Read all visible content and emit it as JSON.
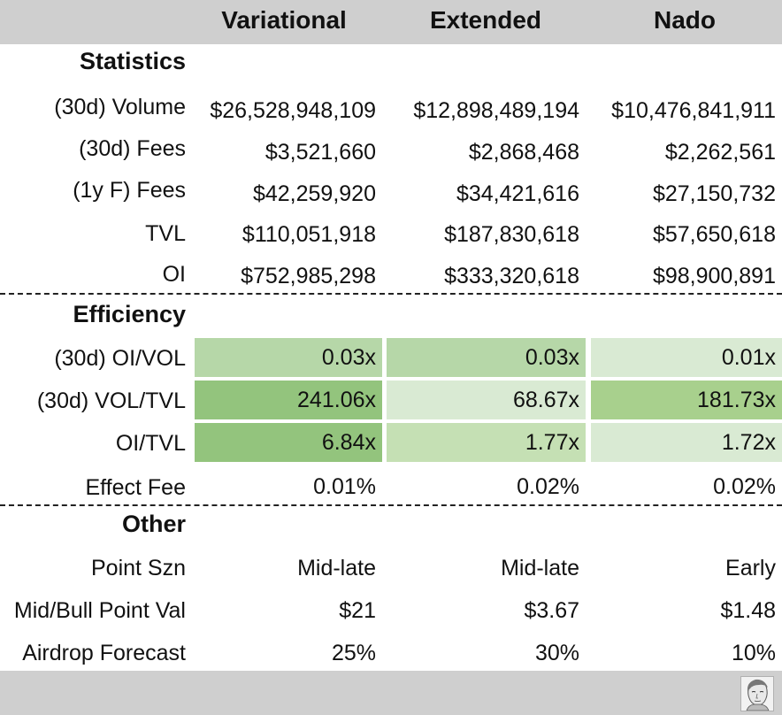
{
  "header": {
    "columns": [
      "Variational",
      "Extended",
      "Nado"
    ]
  },
  "statistics": {
    "title": "Statistics",
    "rows": [
      {
        "label": "(30d) Volume",
        "values": [
          "$26,528,948,109",
          "$12,898,489,194",
          "$10,476,841,911"
        ]
      },
      {
        "label": "(30d) Fees",
        "values": [
          "$3,521,660",
          "$2,868,468",
          "$2,262,561"
        ]
      },
      {
        "label": "(1y F) Fees",
        "values": [
          "$42,259,920",
          "$34,421,616",
          "$27,150,732"
        ]
      },
      {
        "label": "TVL",
        "values": [
          "$110,051,918",
          "$187,830,618",
          "$57,650,618"
        ]
      },
      {
        "label": "OI",
        "values": [
          "$752,985,298",
          "$333,320,618",
          "$98,900,891"
        ]
      }
    ]
  },
  "efficiency": {
    "title": "Efficiency",
    "rows": [
      {
        "label": "(30d) OI/VOL",
        "values": [
          "0.03x",
          "0.03x",
          "0.01x"
        ],
        "colors": [
          "#b6d7a8",
          "#b6d7a8",
          "#d9ead3"
        ]
      },
      {
        "label": "(30d) VOL/TVL",
        "values": [
          "241.06x",
          "68.67x",
          "181.73x"
        ],
        "colors": [
          "#93c47d",
          "#d9ead3",
          "#a8d08d"
        ]
      },
      {
        "label": "OI/TVL",
        "values": [
          "6.84x",
          "1.77x",
          "1.72x"
        ],
        "colors": [
          "#93c47d",
          "#c5e0b4",
          "#d9ead3"
        ]
      },
      {
        "label": "Effect Fee",
        "values": [
          "0.01%",
          "0.02%",
          "0.02%"
        ]
      }
    ]
  },
  "other": {
    "title": "Other",
    "rows": [
      {
        "label": "Point Szn",
        "values": [
          "Mid-late",
          "Mid-late",
          "Early"
        ]
      },
      {
        "label": "Mid/Bull Point Val",
        "values": [
          "$21",
          "$3.67",
          "$1.48"
        ]
      },
      {
        "label": "Airdrop Forecast",
        "values": [
          "25%",
          "30%",
          "10%"
        ]
      }
    ]
  },
  "footer": {
    "icon": "avatar-icon"
  }
}
